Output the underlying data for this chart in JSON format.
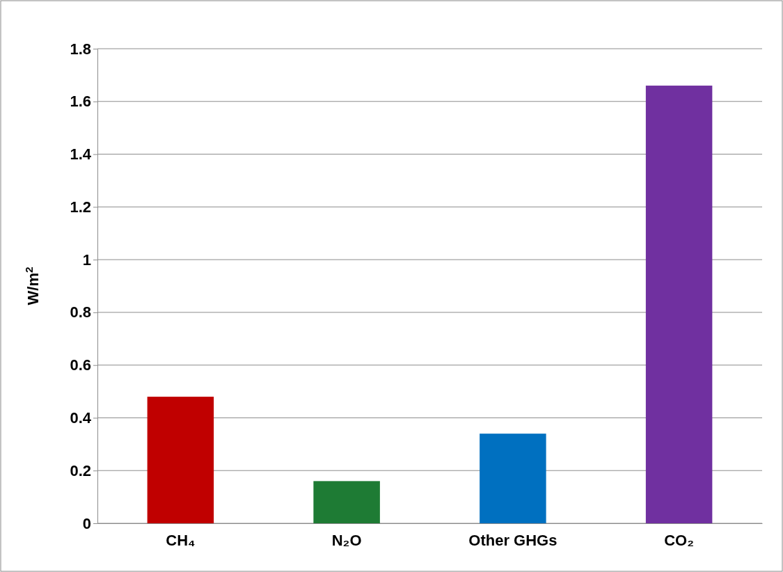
{
  "chart_data": {
    "type": "bar",
    "ylabel": "W/m$^{2}$",
    "categories": [
      "CH₄",
      "N₂O",
      "Other GHGs",
      "CO₂"
    ],
    "values": [
      0.48,
      0.16,
      0.34,
      1.66
    ],
    "colors": [
      "#c00000",
      "#1e7b34",
      "#0070c0",
      "#7030a0"
    ],
    "ylim": [
      0,
      1.8
    ],
    "yticks": [
      0,
      0.2,
      0.4,
      0.6,
      0.8,
      1,
      1.2,
      1.4,
      1.6,
      1.8
    ],
    "grid": "y"
  }
}
